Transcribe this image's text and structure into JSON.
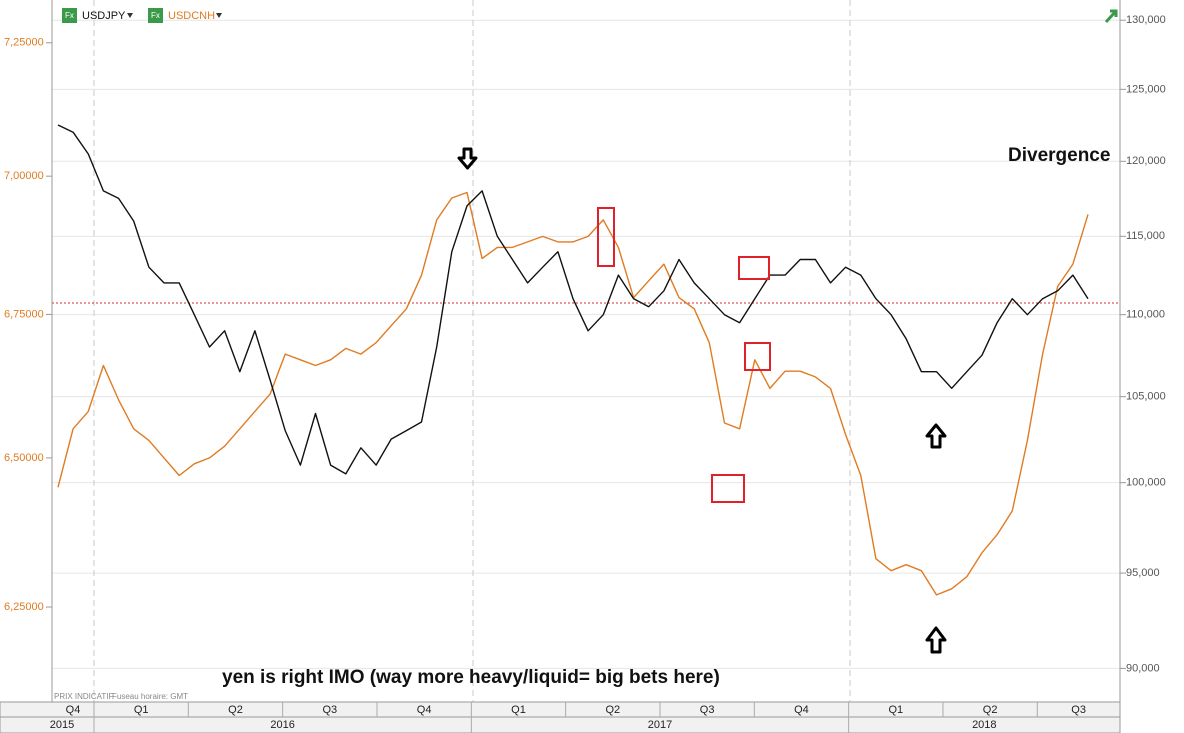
{
  "chart_data": {
    "type": "line",
    "legend": [
      "USDJPY",
      "USDCNH"
    ],
    "annotations": [
      "Divergence",
      "yen is right IMO (way more heavy/liquid= big bets here)"
    ],
    "footnotes": [
      "PRIX INDICATIF",
      "Fuseau horaire: GMT"
    ],
    "quarters": [
      "Q4",
      "Q1",
      "Q2",
      "Q3",
      "Q4",
      "Q1",
      "Q2",
      "Q3",
      "Q4",
      "Q1",
      "Q2",
      "Q3"
    ],
    "years": [
      "2015",
      "2016",
      "2017",
      "2018"
    ],
    "log": true,
    "grid": true,
    "ylim": [
      6.099,
      7.332
    ],
    "yticks": [
      {
        "value": 6.25,
        "label": "6,25000"
      },
      {
        "value": 6.5,
        "label": "6,50000"
      },
      {
        "value": 6.75,
        "label": "6,75000"
      },
      {
        "value": 7,
        "label": "7,00000"
      },
      {
        "value": 7.25,
        "label": "7,25000"
      }
    ],
    "y2lim": [
      88.4,
      131.5
    ],
    "y2ticks": [
      {
        "value": 90,
        "label": "90,000"
      },
      {
        "value": 95,
        "label": "95,000"
      },
      {
        "value": 100,
        "label": "100,000"
      },
      {
        "value": 105,
        "label": "105,000"
      },
      {
        "value": 110,
        "label": "110,000"
      },
      {
        "value": 115,
        "label": "115,000"
      },
      {
        "value": 120,
        "label": "120,000"
      },
      {
        "value": 125,
        "label": "125,000"
      },
      {
        "value": 130,
        "label": "130,000"
      }
    ],
    "series": [
      {
        "name": "USDJPY",
        "color": "#111111",
        "axis": "y2",
        "values": [
          122.5,
          122,
          120.5,
          118,
          117.5,
          116,
          113,
          112,
          112,
          110,
          108,
          109,
          106.5,
          109,
          106,
          103,
          101,
          104,
          101,
          100.5,
          102,
          101,
          102.5,
          103,
          103.5,
          108,
          114,
          117,
          118,
          115,
          113.5,
          112,
          113,
          114,
          111,
          109,
          110,
          112.5,
          111,
          110.5,
          111.5,
          113.5,
          112,
          111,
          110,
          109.5,
          111,
          112.5,
          112.5,
          113.5,
          113.5,
          112,
          113,
          112.5,
          111,
          110,
          108.5,
          106.5,
          106.5,
          105.5,
          106.5,
          107.5,
          109.5,
          111,
          110,
          111,
          111.5,
          112.5,
          111
        ]
      },
      {
        "name": "USDCNH",
        "color": "#e07b22",
        "axis": "y",
        "values": [
          6.45,
          6.55,
          6.58,
          6.66,
          6.6,
          6.55,
          6.53,
          6.5,
          6.47,
          6.49,
          6.5,
          6.52,
          6.55,
          6.58,
          6.61,
          6.68,
          6.67,
          6.66,
          6.67,
          6.69,
          6.68,
          6.7,
          6.73,
          6.76,
          6.82,
          6.92,
          6.96,
          6.97,
          6.85,
          6.87,
          6.87,
          6.88,
          6.89,
          6.88,
          6.88,
          6.89,
          6.92,
          6.87,
          6.78,
          6.81,
          6.84,
          6.78,
          6.76,
          6.7,
          6.56,
          6.55,
          6.67,
          6.62,
          6.65,
          6.65,
          6.64,
          6.62,
          6.54,
          6.47,
          6.33,
          6.31,
          6.32,
          6.31,
          6.27,
          6.28,
          6.3,
          6.34,
          6.37,
          6.41,
          6.53,
          6.68,
          6.8,
          6.84,
          6.93
        ]
      }
    ]
  }
}
